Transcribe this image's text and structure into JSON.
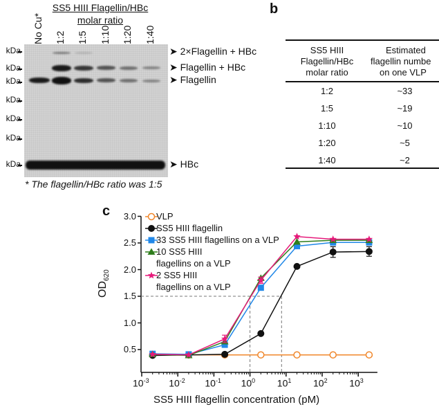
{
  "panel_a": {
    "header_line1": "SS5 HIII Flagellin/HBc",
    "header_line2": "molar ratio",
    "lanes": [
      "No Cu*",
      "1:2",
      "1:5",
      "1:10",
      "1:20",
      "1:40"
    ],
    "kda_labels": [
      "kDa",
      "kDa",
      "kDa",
      "kDa",
      "kDa",
      "kDa",
      "kDa"
    ],
    "band_labels": [
      "2×Flagellin + HBc",
      "Flagellin + HBc",
      "Flagellin",
      "HBc"
    ],
    "footnote": "* The flagellin/HBc ratio was 1:5"
  },
  "panel_b": {
    "label": "b",
    "headers": [
      [
        "SS5 HIII",
        "Flagellin/HBc",
        "molar ratio"
      ],
      [
        "Estimated",
        "flagellin numbe",
        "on one VLP"
      ]
    ],
    "rows": [
      [
        "1:2",
        "~33"
      ],
      [
        "1:5",
        "~19"
      ],
      [
        "1:10",
        "~10"
      ],
      [
        "1:20",
        "~5"
      ],
      [
        "1:40",
        "~2"
      ]
    ]
  },
  "panel_c": {
    "label": "c"
  },
  "chart_data": {
    "type": "line",
    "xscale": "log",
    "xlabel": "SS5 HIII flagellin concentration (pM)",
    "ylabel": "OD",
    "ylabel_sub": "620",
    "xlim": [
      0.001,
      2000
    ],
    "ylim": [
      0,
      3.0
    ],
    "yticks": [
      "0.5",
      "1.0",
      "1.5",
      "2.0",
      "2.5",
      "3.0"
    ],
    "xtick_exps": [
      "-3",
      "-2",
      "-1",
      "0",
      "1",
      "2",
      "3"
    ],
    "x": [
      0.002,
      0.02,
      0.2,
      2,
      20,
      200,
      2000
    ],
    "reference_lines": {
      "y": 1.5,
      "x": [
        1,
        7.5
      ]
    },
    "legend_placement": "top-left",
    "series": [
      {
        "name": "VLP",
        "color": "#f0862a",
        "marker": "open-circle",
        "values": [
          0.4,
          0.4,
          0.4,
          0.4,
          0.4,
          0.4,
          0.4
        ]
      },
      {
        "name": "SS5 HIII flagellin",
        "color": "#111111",
        "marker": "circle",
        "values": [
          0.39,
          0.4,
          0.41,
          0.8,
          2.06,
          2.33,
          2.34
        ],
        "errors": [
          0,
          0,
          0,
          0,
          0,
          0.1,
          0.09
        ]
      },
      {
        "name": "33 SS5 HIII flagellins on a VLP",
        "color": "#2188e8",
        "marker": "square",
        "values": [
          0.42,
          0.41,
          0.59,
          1.66,
          2.44,
          2.51,
          2.51
        ],
        "errors": [
          0,
          0,
          0.05,
          0,
          0,
          0.05,
          0.05
        ]
      },
      {
        "name": "10 SS5 HIII",
        "name_line2": "flagellins on a VLP",
        "color": "#2f7d1c",
        "marker": "triangle",
        "values": [
          0.41,
          0.39,
          0.65,
          1.84,
          2.52,
          2.55,
          2.55
        ]
      },
      {
        "name": "2 SS5 HIII",
        "name_line2": "flagellins on a VLP",
        "color": "#e6197a",
        "marker": "star",
        "values": [
          0.41,
          0.4,
          0.7,
          1.8,
          2.62,
          2.57,
          2.57
        ],
        "errors": [
          0,
          0,
          0.07,
          0.06,
          0,
          0,
          0
        ]
      }
    ]
  }
}
